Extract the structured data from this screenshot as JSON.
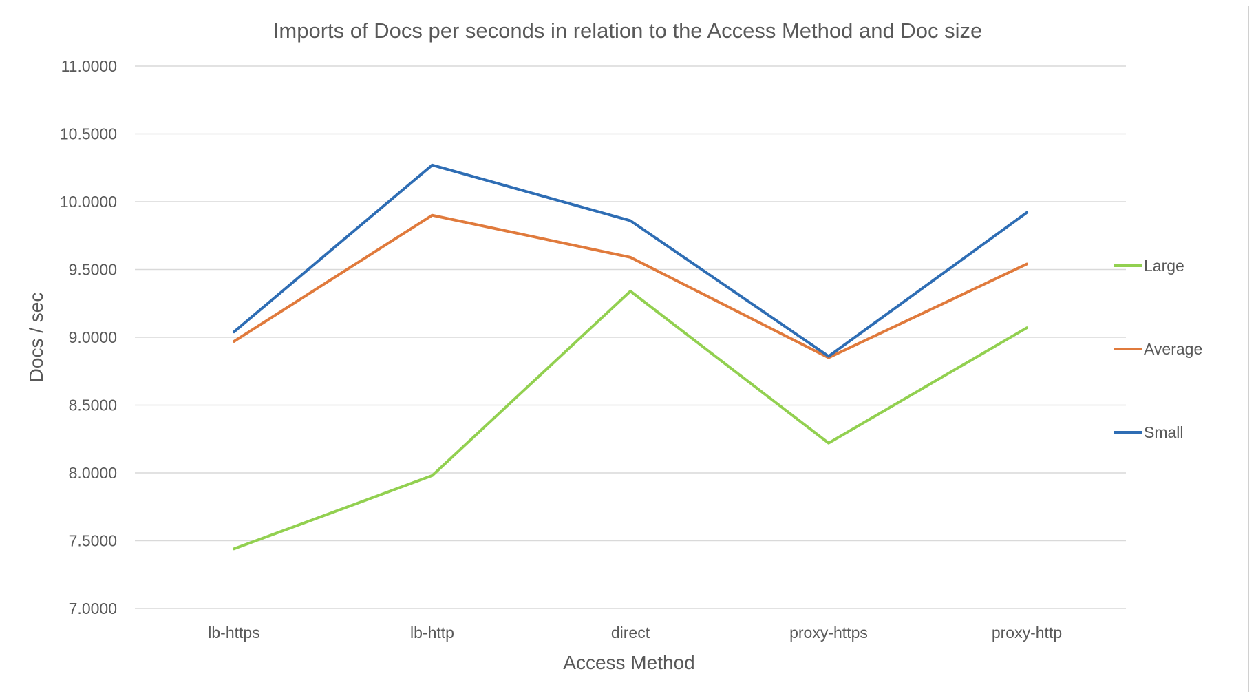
{
  "chart_data": {
    "type": "line",
    "title": "Imports of Docs per seconds in relation to the Access Method and Doc size",
    "xlabel": "Access Method",
    "ylabel": "Docs / sec",
    "categories": [
      "lb-https",
      "lb-http",
      "direct",
      "proxy-https",
      "proxy-http"
    ],
    "ylim": [
      7.0,
      11.0
    ],
    "yticks": [
      "7.0000",
      "7.5000",
      "8.0000",
      "8.5000",
      "9.0000",
      "9.5000",
      "10.0000",
      "10.5000",
      "11.0000"
    ],
    "grid": true,
    "legend_position": "right",
    "series": [
      {
        "name": "Large",
        "color": "#92d050",
        "values": [
          7.44,
          7.98,
          9.34,
          8.22,
          9.07
        ]
      },
      {
        "name": "Average",
        "color": "#e07a3c",
        "values": [
          8.97,
          9.9,
          9.59,
          8.85,
          9.54
        ]
      },
      {
        "name": "Small",
        "color": "#2e6db4",
        "values": [
          9.04,
          10.27,
          9.86,
          8.86,
          9.92
        ]
      }
    ]
  }
}
